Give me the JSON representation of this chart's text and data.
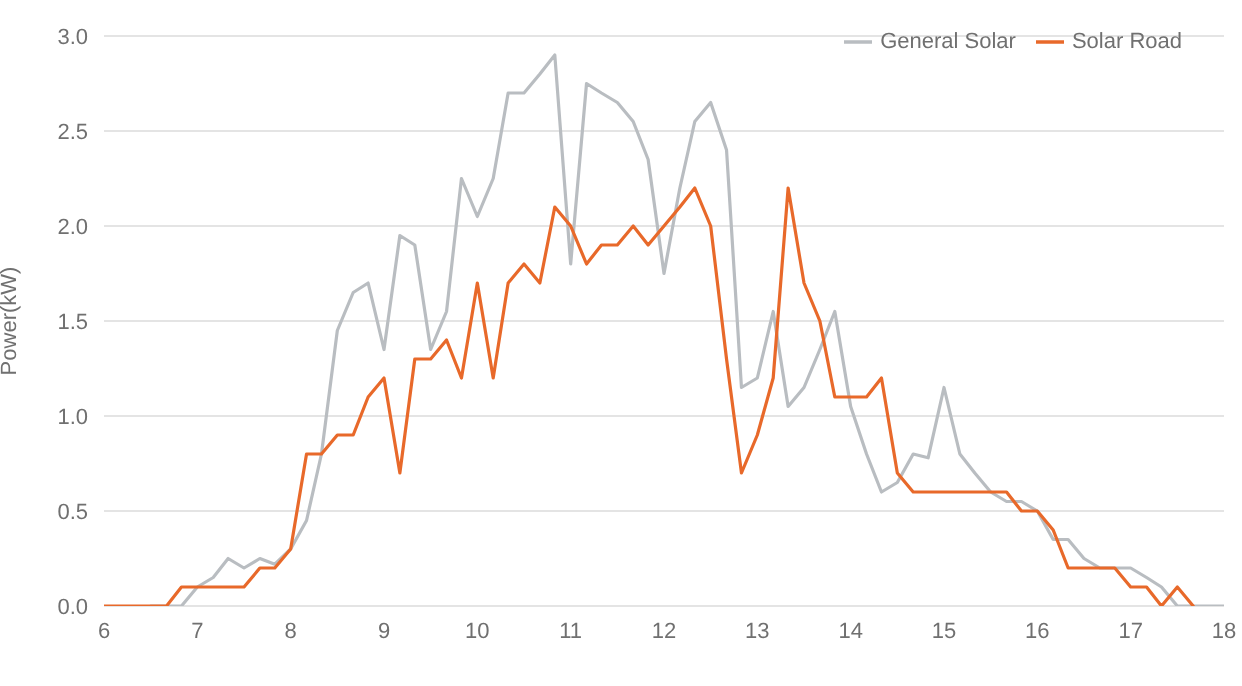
{
  "chart_data": {
    "type": "line",
    "ylabel": "Power(kW)",
    "x": [
      6,
      6.17,
      6.33,
      6.5,
      6.67,
      6.83,
      7,
      7.17,
      7.33,
      7.5,
      7.67,
      7.83,
      8,
      8.17,
      8.33,
      8.5,
      8.67,
      8.83,
      9,
      9.17,
      9.33,
      9.5,
      9.67,
      9.83,
      10,
      10.17,
      10.33,
      10.5,
      10.67,
      10.83,
      11,
      11.17,
      11.33,
      11.5,
      11.67,
      11.83,
      12,
      12.17,
      12.33,
      12.5,
      12.67,
      12.83,
      13,
      13.17,
      13.33,
      13.5,
      13.67,
      13.83,
      14,
      14.17,
      14.33,
      14.5,
      14.67,
      14.83,
      15,
      15.17,
      15.33,
      15.5,
      15.67,
      15.83,
      16,
      16.17,
      16.33,
      16.5,
      16.67,
      16.83,
      17,
      17.17,
      17.33,
      17.5,
      17.67,
      17.83,
      18
    ],
    "series": [
      {
        "name": "General Solar",
        "color": "#b9bdc1",
        "values": [
          null,
          null,
          null,
          0,
          0,
          0,
          0.1,
          0.15,
          0.25,
          0.2,
          0.25,
          0.22,
          0.3,
          0.45,
          0.8,
          1.45,
          1.65,
          1.7,
          1.35,
          1.95,
          1.9,
          1.35,
          1.55,
          2.25,
          2.05,
          2.25,
          2.7,
          2.7,
          2.8,
          2.9,
          1.8,
          2.75,
          2.7,
          2.65,
          2.55,
          2.35,
          1.75,
          2.2,
          2.55,
          2.65,
          2.4,
          1.15,
          1.2,
          1.55,
          1.05,
          1.15,
          1.35,
          1.55,
          1.05,
          0.8,
          0.6,
          0.65,
          0.8,
          0.78,
          1.15,
          0.8,
          0.7,
          0.6,
          0.55,
          0.55,
          0.5,
          0.35,
          0.35,
          0.25,
          0.2,
          0.2,
          0.2,
          0.15,
          0.1,
          0,
          0,
          0,
          0
        ]
      },
      {
        "name": "Solar Road",
        "color": "#e8692a",
        "values": [
          0,
          0,
          0,
          0,
          0,
          0.1,
          0.1,
          0.1,
          0.1,
          0.1,
          0.2,
          0.2,
          0.3,
          0.8,
          0.8,
          0.9,
          0.9,
          1.1,
          1.2,
          0.7,
          1.3,
          1.3,
          1.4,
          1.2,
          1.7,
          1.2,
          1.7,
          1.8,
          1.7,
          2.1,
          2.0,
          1.8,
          1.9,
          1.9,
          2.0,
          1.9,
          2.0,
          2.1,
          2.2,
          2.0,
          1.3,
          0.7,
          0.9,
          1.2,
          2.2,
          1.7,
          1.5,
          1.1,
          1.1,
          1.1,
          1.2,
          0.7,
          0.6,
          0.6,
          0.6,
          0.6,
          0.6,
          0.6,
          0.6,
          0.5,
          0.5,
          0.4,
          0.2,
          0.2,
          0.2,
          0.2,
          0.1,
          0.1,
          0,
          0.1,
          0,
          null,
          null
        ]
      }
    ],
    "xlim": [
      6,
      18
    ],
    "xticks": [
      6,
      7,
      8,
      9,
      10,
      11,
      12,
      13,
      14,
      15,
      16,
      17,
      18
    ],
    "ylim": [
      0,
      3
    ],
    "yticks": [
      {
        "value": 0,
        "label": "0.0"
      },
      {
        "value": 0.5,
        "label": "0.5"
      },
      {
        "value": 1,
        "label": "1.0"
      },
      {
        "value": 1.5,
        "label": "1.5"
      },
      {
        "value": 2,
        "label": "2.0"
      },
      {
        "value": 2.5,
        "label": "2.5"
      },
      {
        "value": 3,
        "label": "3.0"
      }
    ],
    "grid": "y",
    "legend": "top right",
    "marker": "none",
    "line_style": "solid"
  }
}
